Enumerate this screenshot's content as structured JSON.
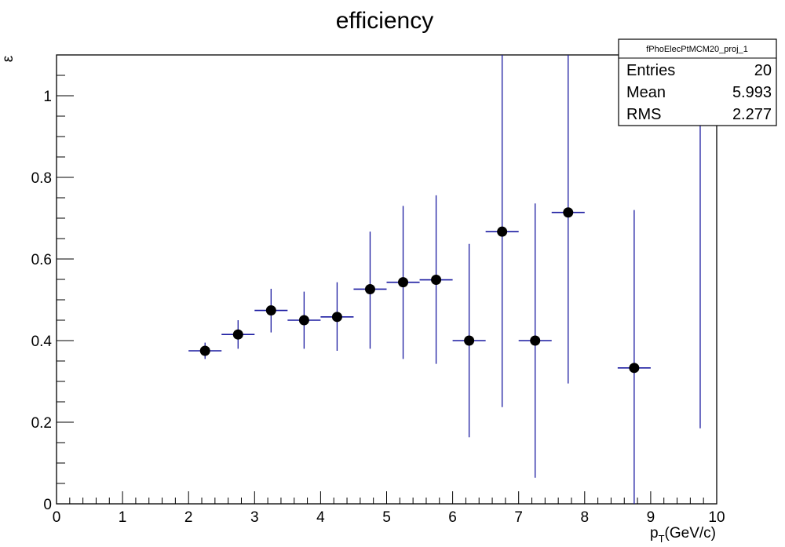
{
  "chart_data": {
    "type": "scatter",
    "title": "efficiency",
    "ylabel": "ε",
    "xlabel": {
      "main": "p",
      "sub": "T",
      "unit": "(GeV/c)"
    },
    "xlim": [
      0,
      10
    ],
    "ylim": [
      0,
      1.1
    ],
    "xticks": [
      0,
      1,
      2,
      3,
      4,
      5,
      6,
      7,
      8,
      9,
      10
    ],
    "yticks": [
      0,
      0.2,
      0.4,
      0.6,
      0.8,
      1
    ],
    "ytick_labels": [
      "0",
      "0.2",
      "0.4",
      "0.6",
      "0.8",
      "1"
    ],
    "grid": false,
    "colors": {
      "marker": "#000000",
      "error_bar": "#1a1aa0",
      "axis": "#000000"
    },
    "bin_half_width": 0.25,
    "points": [
      {
        "x": 2.25,
        "y": 0.375,
        "ylow": 0.355,
        "yhigh": 0.395
      },
      {
        "x": 2.75,
        "y": 0.415,
        "ylow": 0.38,
        "yhigh": 0.45
      },
      {
        "x": 3.25,
        "y": 0.474,
        "ylow": 0.42,
        "yhigh": 0.527
      },
      {
        "x": 3.75,
        "y": 0.45,
        "ylow": 0.38,
        "yhigh": 0.52
      },
      {
        "x": 4.25,
        "y": 0.458,
        "ylow": 0.375,
        "yhigh": 0.543
      },
      {
        "x": 4.75,
        "y": 0.526,
        "ylow": 0.38,
        "yhigh": 0.667
      },
      {
        "x": 5.25,
        "y": 0.543,
        "ylow": 0.355,
        "yhigh": 0.73
      },
      {
        "x": 5.75,
        "y": 0.549,
        "ylow": 0.343,
        "yhigh": 0.756
      },
      {
        "x": 6.25,
        "y": 0.4,
        "ylow": 0.163,
        "yhigh": 0.637
      },
      {
        "x": 6.75,
        "y": 0.667,
        "ylow": 0.237,
        "yhigh": 1.1
      },
      {
        "x": 7.25,
        "y": 0.4,
        "ylow": 0.064,
        "yhigh": 0.736
      },
      {
        "x": 7.75,
        "y": 0.714,
        "ylow": 0.295,
        "yhigh": 1.1
      },
      {
        "x": 8.75,
        "y": 0.333,
        "ylow": 0.0,
        "yhigh": 0.72
      },
      {
        "x": 9.75,
        "y": null,
        "ylow": 0.185,
        "yhigh": 1.1
      }
    ]
  },
  "stats_box": {
    "name": "fPhoElecPtMCM20_proj_1",
    "rows": [
      {
        "label": "Entries",
        "value": "20"
      },
      {
        "label": "Mean",
        "value": "5.993"
      },
      {
        "label": "RMS",
        "value": "2.277"
      }
    ]
  }
}
